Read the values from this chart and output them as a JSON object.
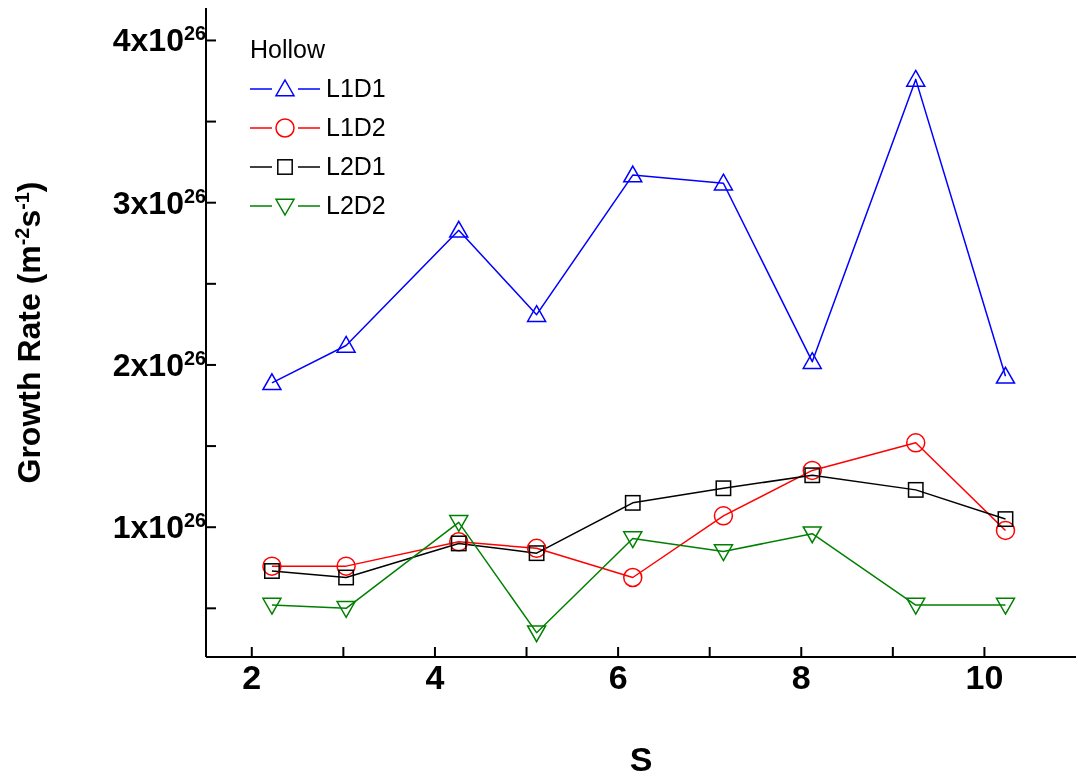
{
  "chart_data": {
    "type": "line",
    "xlabel": "S",
    "ylabel": "Growth Rate (m$^{-2}$s$^{-1}$)",
    "legend_title": "Hollow",
    "legend": "top left",
    "grid": false,
    "x": [
      2.22,
      3.03,
      4.26,
      5.11,
      6.16,
      7.15,
      8.12,
      9.25,
      10.23
    ],
    "xlim": [
      1.5,
      11
    ],
    "xticks": [
      2,
      {
        "value": 3,
        "label": null
      },
      4,
      {
        "value": 5,
        "label": null
      },
      6,
      {
        "value": 7,
        "label": null
      },
      8,
      {
        "value": 9,
        "label": null
      },
      10
    ],
    "ylim": [
      2e+25,
      4.2e+26
    ],
    "yticks": [
      {
        "value": 5e+25,
        "label": null
      },
      {
        "value": 1e+26,
        "label": "1x10$^{26}$"
      },
      {
        "value": 1.5e+26,
        "label": null
      },
      {
        "value": 2e+26,
        "label": "2x10$^{26}$"
      },
      {
        "value": 2.5e+26,
        "label": null
      },
      {
        "value": 3e+26,
        "label": "3x10$^{26}$"
      },
      {
        "value": 3.5e+26,
        "label": null
      },
      {
        "value": 4e+26,
        "label": "4x10$^{26}$"
      }
    ],
    "series": [
      {
        "name": "L1D1",
        "color": "#0000ff",
        "marker": "triangle",
        "values": [
          1.89e+26,
          2.12e+26,
          2.83e+26,
          2.31e+26,
          3.17e+26,
          3.12e+26,
          2.02e+26,
          3.76e+26,
          1.93e+26
        ]
      },
      {
        "name": "L1D2",
        "color": "#ff0000",
        "marker": "circle",
        "values": [
          7.6e+25,
          7.6e+25,
          9.1e+25,
          8.7e+25,
          6.9e+25,
          1.07e+26,
          1.35e+26,
          1.52e+26,
          9.8e+25
        ]
      },
      {
        "name": "L2D1",
        "color": "#000000",
        "marker": "square",
        "values": [
          7.3e+25,
          6.9e+25,
          9e+25,
          8.4e+25,
          1.15e+26,
          1.24e+26,
          1.32e+26,
          1.23e+26,
          1.05e+26
        ]
      },
      {
        "name": "L2D2",
        "color": "#008000",
        "marker": "triangle-down",
        "values": [
          5.2e+25,
          5e+25,
          1.03e+26,
          3.5e+25,
          9.3e+25,
          8.5e+25,
          9.6e+25,
          5.2e+25,
          5.2e+25
        ]
      }
    ]
  }
}
